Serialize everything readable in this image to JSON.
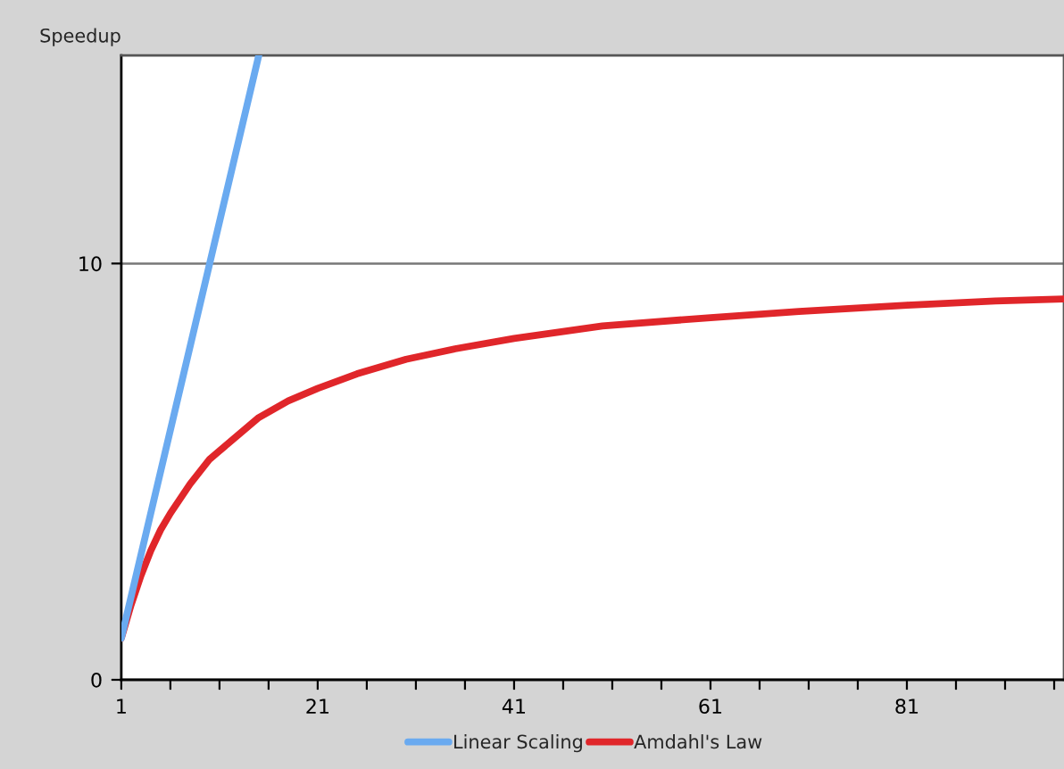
{
  "chart_data": {
    "type": "line",
    "ylabel": "Speedup",
    "series": [
      {
        "name": "Linear Scaling",
        "color": "#6aaaf0",
        "x": [
          1,
          15
        ],
        "values": [
          1,
          15
        ]
      },
      {
        "name": "Amdahl's Law",
        "color": "#e0262a",
        "x": [
          1,
          2,
          3,
          4,
          5,
          6,
          8,
          10,
          12,
          15,
          18,
          21,
          25,
          30,
          35,
          41,
          50,
          61,
          70,
          81,
          90,
          97
        ],
        "values": [
          1.0,
          1.8,
          2.5,
          3.1,
          3.6,
          4.0,
          4.7,
          5.3,
          5.7,
          6.3,
          6.7,
          7.0,
          7.35,
          7.7,
          7.95,
          8.2,
          8.5,
          8.7,
          8.85,
          9.0,
          9.1,
          9.15
        ]
      }
    ],
    "xlim": [
      1,
      97
    ],
    "ylim": [
      0,
      15
    ],
    "xticks": [
      1,
      {
        "value": 6,
        "label": null
      },
      {
        "value": 11,
        "label": null
      },
      {
        "value": 16,
        "label": null
      },
      21,
      {
        "value": 26,
        "label": null
      },
      {
        "value": 31,
        "label": null
      },
      {
        "value": 36,
        "label": null
      },
      41,
      {
        "value": 46,
        "label": null
      },
      {
        "value": 51,
        "label": null
      },
      {
        "value": 56,
        "label": null
      },
      61,
      {
        "value": 66,
        "label": null
      },
      {
        "value": 71,
        "label": null
      },
      {
        "value": 76,
        "label": null
      },
      81,
      {
        "value": 86,
        "label": null
      },
      {
        "value": 91,
        "label": null
      },
      {
        "value": 96,
        "label": null
      }
    ],
    "yticks": [
      0,
      10
    ],
    "grid": "y",
    "legend": "bottom",
    "marker": "none",
    "line_style": "solid"
  }
}
